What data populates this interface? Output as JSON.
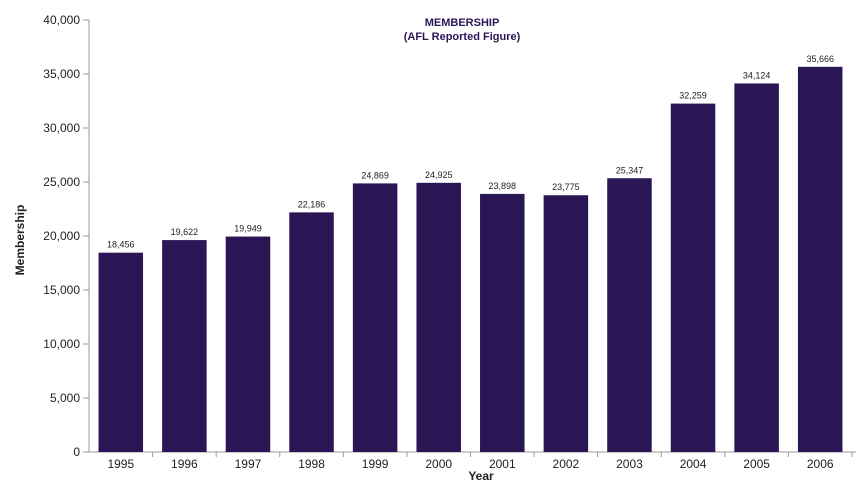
{
  "chart_data": {
    "type": "bar",
    "title": "MEMBERSHIP",
    "subtitle": "(AFL Reported Figure)",
    "xlabel": "Year",
    "ylabel": "Membership",
    "categories": [
      "1995",
      "1996",
      "1997",
      "1998",
      "1999",
      "2000",
      "2001",
      "2002",
      "2003",
      "2004",
      "2005",
      "2006"
    ],
    "values": [
      18456,
      19622,
      19949,
      22186,
      24869,
      24925,
      23898,
      23775,
      25347,
      32259,
      34124,
      35666
    ],
    "value_labels": [
      "18,456",
      "19,622",
      "19,949",
      "22,186",
      "24,869",
      "24,925",
      "23,898",
      "23,775",
      "25,347",
      "32,259",
      "34,124",
      "35,666"
    ],
    "y_ticks": [
      0,
      5000,
      10000,
      15000,
      20000,
      25000,
      30000,
      35000,
      40000
    ],
    "y_tick_labels": [
      "0",
      "5,000",
      "10,000",
      "15,000",
      "20,000",
      "25,000",
      "30,000",
      "35,000",
      "40,000"
    ],
    "ylim": [
      0,
      40000
    ],
    "grid": false,
    "legend": "none",
    "colors": {
      "bar": "#2a1654",
      "title": "#2a1654",
      "axis": "#999999"
    }
  }
}
